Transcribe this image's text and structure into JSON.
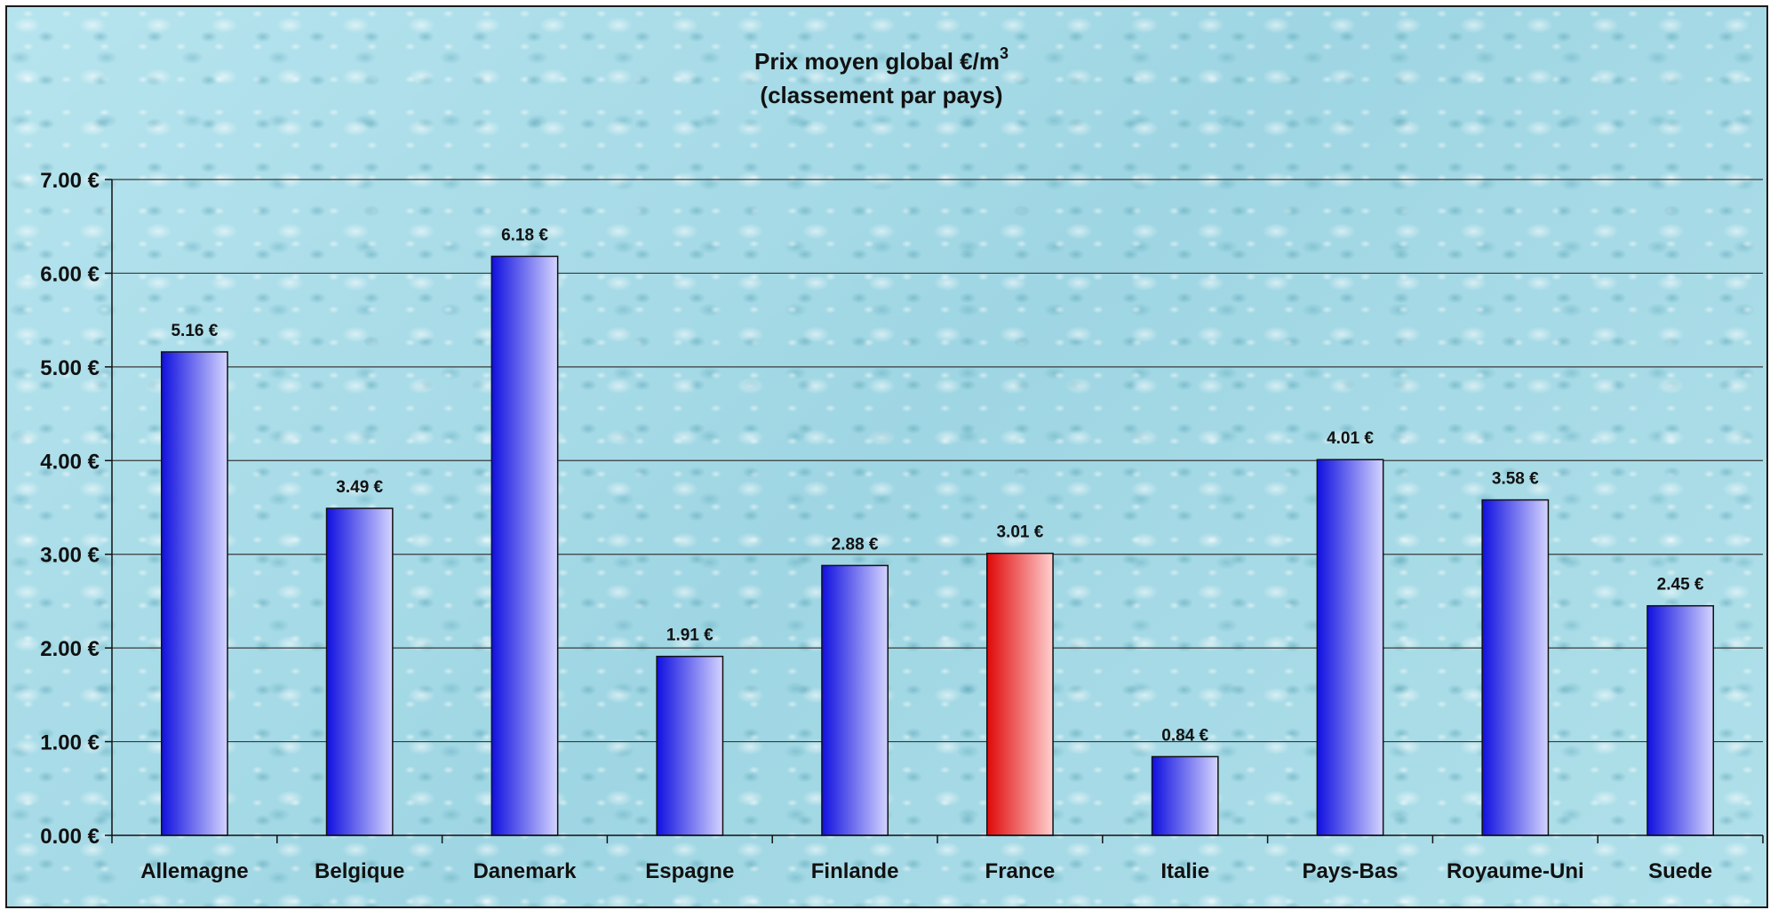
{
  "chart_data": {
    "type": "bar",
    "title": "Prix moyen global €/m",
    "title_superscript": "3",
    "subtitle": "(classement par pays)",
    "categories": [
      "Allemagne",
      "Belgique",
      "Danemark",
      "Espagne",
      "Finlande",
      "France",
      "Italie",
      "Pays-Bas",
      "Royaume-Uni",
      "Suede"
    ],
    "values": [
      5.16,
      3.49,
      6.18,
      1.91,
      2.88,
      3.01,
      0.84,
      4.01,
      3.58,
      2.45
    ],
    "data_labels": [
      "5.16 €",
      "3.49 €",
      "6.18 €",
      "1.91 €",
      "2.88 €",
      "3.01 €",
      "0.84 €",
      "4.01 €",
      "3.58 €",
      "2.45 €"
    ],
    "highlight_category": "France",
    "ylim": [
      0,
      7
    ],
    "yticks": [
      0,
      1,
      2,
      3,
      4,
      5,
      6,
      7
    ],
    "ytick_labels": [
      "0.00 €",
      "1.00 €",
      "2.00 €",
      "3.00 €",
      "4.00 €",
      "5.00 €",
      "6.00 €",
      "7.00 €"
    ],
    "xlabel": "",
    "ylabel": "",
    "grid": true,
    "legend": false,
    "colors": {
      "bar_dark": "#1010e0",
      "bar_light": "#d4d4ff",
      "highlight_dark": "#e00808",
      "highlight_light": "#ffd0d0",
      "gridline": "#3a3a3a",
      "background": "#a9dde8"
    }
  }
}
